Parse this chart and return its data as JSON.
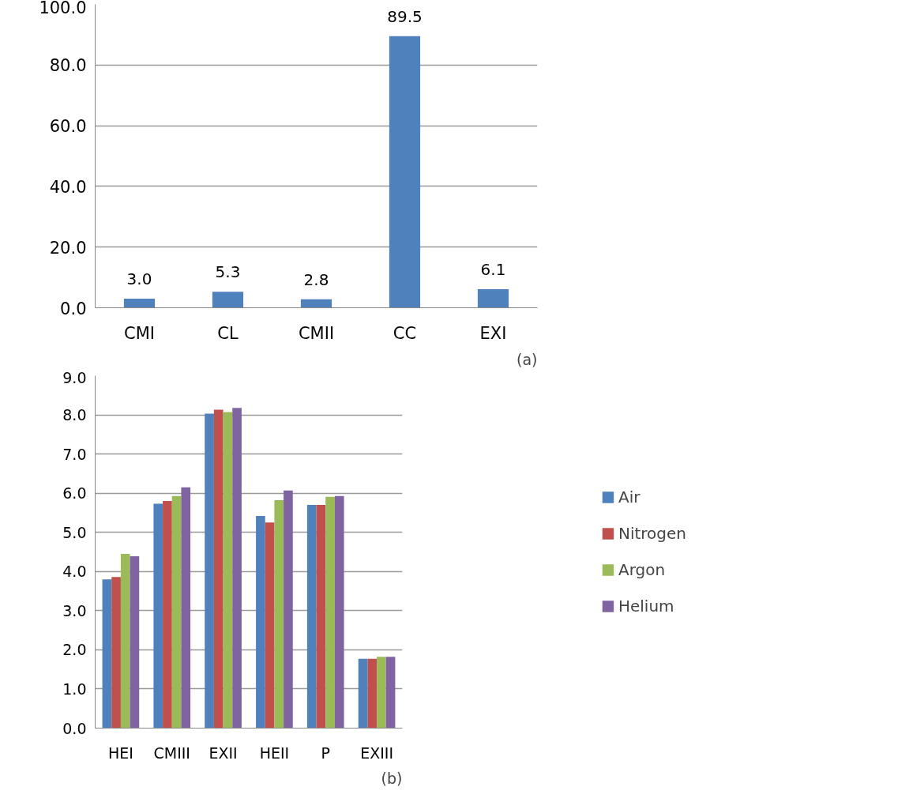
{
  "chart_data": [
    {
      "type": "bar",
      "categories": [
        "CMI",
        "CL",
        "CMII",
        "CC",
        "EXI"
      ],
      "values": [
        3.0,
        5.3,
        2.8,
        89.5,
        6.1
      ],
      "color": "#4f81bd",
      "value_labels": [
        "3.0",
        "5.3",
        "2.8",
        "89.5",
        "6.1"
      ],
      "ylim": [
        0,
        100
      ],
      "yticks": [
        {
          "value": 0,
          "label": "0.0"
        },
        {
          "value": 20,
          "label": "20.0"
        },
        {
          "value": 40,
          "label": "40.0"
        },
        {
          "value": 60,
          "label": "60.0"
        },
        {
          "value": 80,
          "label": "80.0"
        },
        {
          "value": 100,
          "label": "100.0"
        }
      ],
      "grid": "y",
      "legend": false,
      "annotations": [
        "(a)"
      ]
    },
    {
      "type": "bar",
      "categories": [
        "HEI",
        "CMIII",
        "EXII",
        "HEII",
        "P",
        "EXIII"
      ],
      "series": [
        {
          "name": "Air",
          "color": "#4f81bd",
          "values": [
            3.8,
            5.73,
            8.03,
            5.42,
            5.7,
            1.77
          ]
        },
        {
          "name": "Nitrogen",
          "color": "#c0504d",
          "values": [
            3.86,
            5.8,
            8.13,
            5.25,
            5.7,
            1.77
          ]
        },
        {
          "name": "Argon",
          "color": "#9bbb59",
          "values": [
            4.45,
            5.93,
            8.07,
            5.82,
            5.91,
            1.82
          ]
        },
        {
          "name": "Helium",
          "color": "#8064a2",
          "values": [
            4.39,
            6.15,
            8.18,
            6.07,
            5.93,
            1.82
          ]
        }
      ],
      "ylim": [
        0,
        9
      ],
      "yticks": [
        {
          "value": 0,
          "label": "0.0"
        },
        {
          "value": 1,
          "label": "1.0"
        },
        {
          "value": 2,
          "label": "2.0"
        },
        {
          "value": 3,
          "label": "3.0"
        },
        {
          "value": 4,
          "label": "4.0"
        },
        {
          "value": 5,
          "label": "5.0"
        },
        {
          "value": 6,
          "label": "6.0"
        },
        {
          "value": 7,
          "label": "7.0"
        },
        {
          "value": 8,
          "label": "8.0"
        },
        {
          "value": 9,
          "label": "9.0"
        }
      ],
      "grid": "y",
      "legend": "right",
      "annotations": [
        "(b)"
      ]
    }
  ]
}
